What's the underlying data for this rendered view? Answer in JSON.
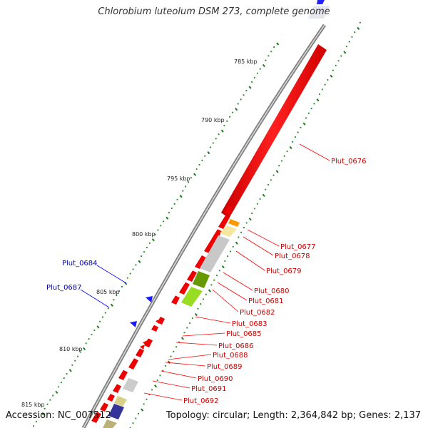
{
  "title": "Chlorobium luteolum DSM 273, complete genome",
  "footer": {
    "accession": "Accession: NC_007512",
    "summary": "Topology: circular; Length: 2,364,842 bp; Genes: 2,137"
  },
  "scale_labels": [
    "785 kbp",
    "790 kbp",
    "795 kbp",
    "800 kbp",
    "805 kbp",
    "810 kbp",
    "815 kbp"
  ],
  "colors": {
    "forward_gene": "#ff0000",
    "reverse_gene": "#0000ff",
    "backbone": "#888888",
    "tick_major": "#228822",
    "label_forward": "#cc0000",
    "label_reverse": "#0000aa"
  },
  "gene_labels_forward": [
    "Plut_0676",
    "Plut_0677",
    "Plut_0678",
    "Plut_0679",
    "Plut_0680",
    "Plut_0681",
    "Plut_0682",
    "Plut_0683",
    "Plut_0685",
    "Plut_0686",
    "Plut_0688",
    "Plut_0689",
    "Plut_0690",
    "Plut_0691",
    "Plut_0692"
  ],
  "gene_labels_reverse": [
    "Plut_0684",
    "Plut_0687"
  ]
}
